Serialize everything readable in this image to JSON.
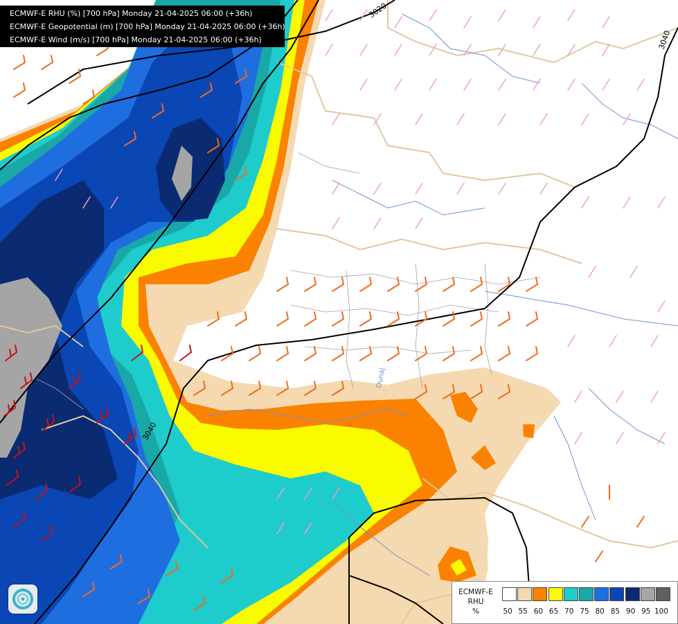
{
  "header": {
    "line1": "ECMWF-E RHU (%) [700 hPa] Monday 21-04-2025 06:00 (+36h)",
    "line2": "ECMWF-E Geopotential (m) [700 hPa] Monday 21-04-2025 06:00 (+36h)",
    "line3": "ECMWF-E Wind (m/s) [700 hPa] Monday 21-04-2025 06:00 (+36h)"
  },
  "contour_labels": [
    "3020",
    "3040",
    "3040"
  ],
  "river_label": "Dunaj",
  "legend": {
    "title_line1": "ECMWF-E",
    "title_line2": "RHU",
    "title_line3": "%",
    "ticks": [
      "50",
      "55",
      "60",
      "65",
      "70",
      "75",
      "80",
      "85",
      "90",
      "95",
      "100"
    ],
    "colors": [
      "#ffffff",
      "#f5d9b0",
      "#fa8200",
      "#fafa00",
      "#1ecccc",
      "#19a8a8",
      "#1f6ee0",
      "#0a46b4",
      "#0a2a72",
      "#a5a5a5",
      "#5f5f5f"
    ]
  },
  "icons": {
    "logo": "forecast-logo-icon",
    "wind": "wind-barb-icon"
  }
}
